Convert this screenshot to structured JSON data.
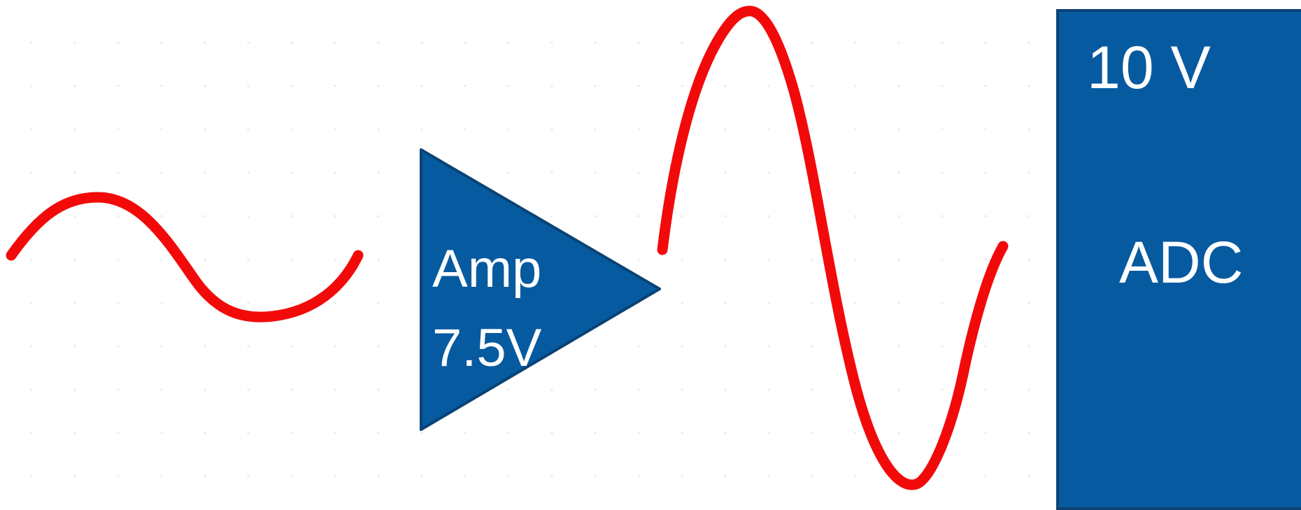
{
  "amplifier": {
    "line1": "Amp",
    "line2": "7.5V"
  },
  "adc": {
    "range_label": "10 V",
    "name": "ADC"
  },
  "colors": {
    "block_fill": "#065AA0",
    "block_stroke": "#0A4274",
    "signal": "#F20A0A",
    "text": "#FFFFFF",
    "grid_dots": "#E7E7E7"
  }
}
